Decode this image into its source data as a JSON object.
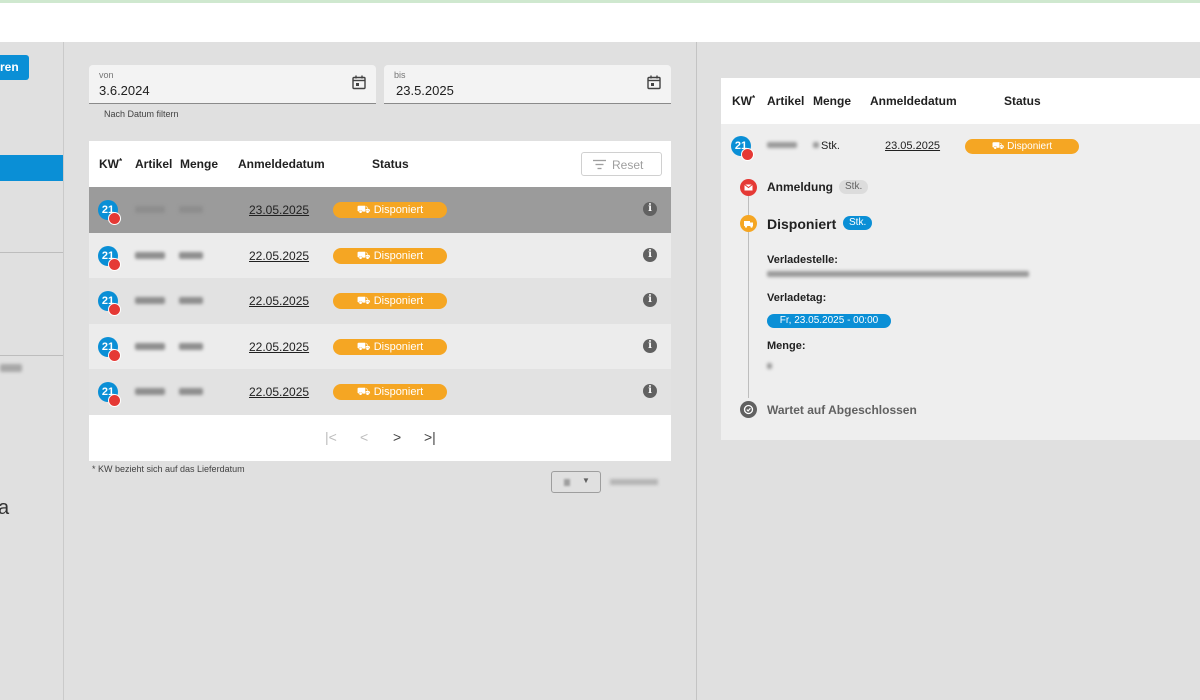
{
  "sidebar": {
    "button_label": "ren",
    "letter": "a"
  },
  "filter": {
    "from_label": "von",
    "from_value": "3.6.2024",
    "to_label": "bis",
    "to_value": "23.5.2025",
    "hint": "Nach Datum filtern"
  },
  "table": {
    "headers": {
      "kw": "KW",
      "kw_marker": "*",
      "artikel": "Artikel",
      "menge": "Menge",
      "anmeldedatum": "Anmeldedatum",
      "status": "Status"
    },
    "reset_label": "Reset",
    "rows": [
      {
        "kw": "21",
        "date": "23.05.2025",
        "status": "Disponiert",
        "selected": true
      },
      {
        "kw": "21",
        "date": "22.05.2025",
        "status": "Disponiert",
        "selected": false
      },
      {
        "kw": "21",
        "date": "22.05.2025",
        "status": "Disponiert",
        "selected": false
      },
      {
        "kw": "21",
        "date": "22.05.2025",
        "status": "Disponiert",
        "selected": false
      },
      {
        "kw": "21",
        "date": "22.05.2025",
        "status": "Disponiert",
        "selected": false
      }
    ],
    "info_glyph": "i",
    "pager": {
      "first": "|<",
      "prev": "<",
      "next": ">",
      "last": ">|"
    },
    "footnote": "* KW bezieht sich auf das Lieferdatum",
    "page_size_arrow": "▼"
  },
  "detail": {
    "headers": {
      "kw": "KW",
      "kw_marker": "*",
      "artikel": "Artikel",
      "menge": "Menge",
      "anmeldedatum": "Anmeldedatum",
      "status": "Status"
    },
    "row": {
      "kw": "21",
      "unit": "Stk.",
      "date": "23.05.2025",
      "status": "Disponiert"
    },
    "timeline": {
      "step1": {
        "title": "Anmeldung",
        "unit": "Stk."
      },
      "step2": {
        "title": "Disponiert",
        "unit": "Stk."
      },
      "verladestelle_label": "Verladestelle:",
      "verladetag_label": "Verladetag:",
      "verladetag_value": "Fr, 23.05.2025 - 00:00",
      "menge_label": "Menge:",
      "step3": {
        "title": "Wartet auf Abgeschlossen"
      }
    }
  },
  "colors": {
    "accent_blue": "#0a8fd6",
    "status_orange": "#f5a623",
    "alert_red": "#e53935"
  }
}
